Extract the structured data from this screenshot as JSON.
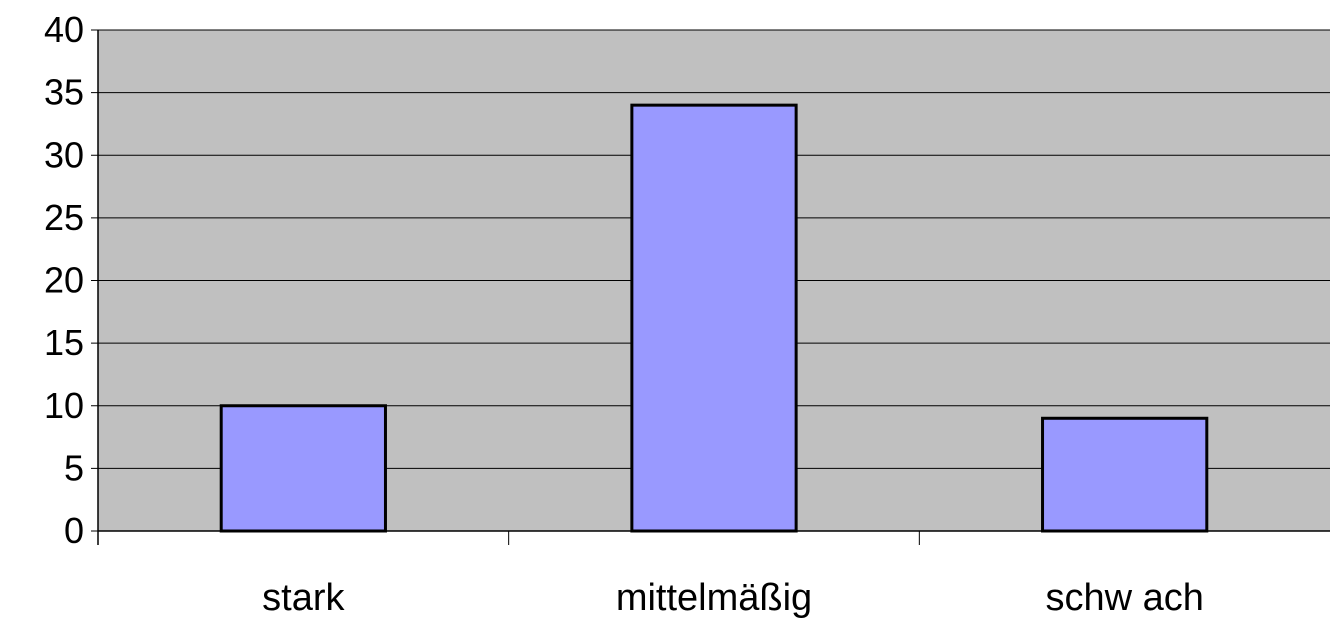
{
  "chart_data": {
    "type": "bar",
    "title": "",
    "xlabel": "",
    "ylabel": "",
    "categories": [
      "stark",
      "mittelmäßig",
      "schw ach"
    ],
    "values": [
      10,
      34,
      9
    ],
    "ylim": [
      0,
      40
    ],
    "yticks": [
      0,
      5,
      10,
      15,
      20,
      25,
      30,
      35,
      40
    ],
    "grid": true,
    "legend": "none",
    "colors": {
      "plot_background": "#c0c0c0",
      "bar_fill": "#9999ff",
      "bar_stroke": "#000000",
      "gridline": "#000000"
    }
  }
}
